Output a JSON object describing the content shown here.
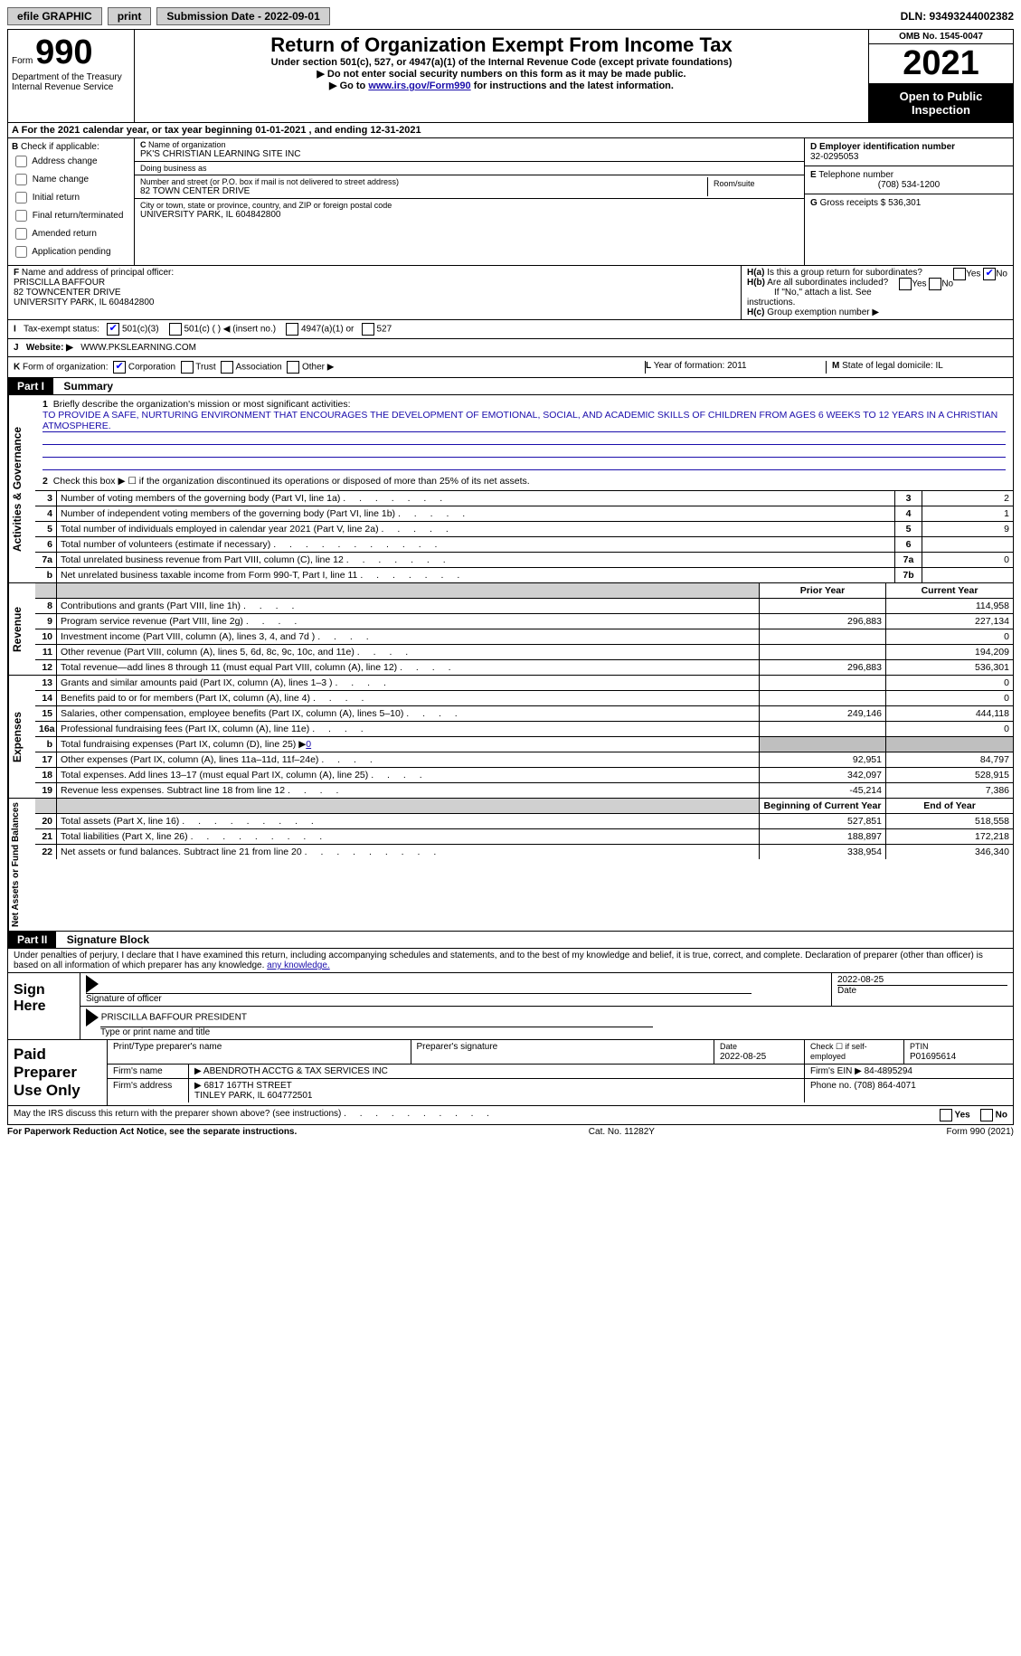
{
  "top": {
    "efile": "efile GRAPHIC",
    "print": "print",
    "sub_label": "Submission Date - 2022-09-01",
    "dln": "DLN: 93493244002382"
  },
  "header": {
    "form": "Form",
    "num": "990",
    "dept": "Department of the Treasury",
    "irs": "Internal Revenue Service",
    "title": "Return of Organization Exempt From Income Tax",
    "sub": "Under section 501(c), 527, or 4947(a)(1) of the Internal Revenue Code (except private foundations)",
    "pub": "▶ Do not enter social security numbers on this form as it may be made public.",
    "go": "▶ Go to ",
    "go_link": "www.irs.gov/Form990",
    "go2": " for instructions and the latest information.",
    "omb": "OMB No. 1545-0047",
    "year": "2021",
    "open": "Open to Public Inspection"
  },
  "A": {
    "text": "For the 2021 calendar year, or tax year beginning 01-01-2021     , and ending 12-31-2021"
  },
  "B": {
    "title": "Check if applicable:",
    "opts": [
      "Address change",
      "Name change",
      "Initial return",
      "Final return/terminated",
      "Amended return",
      "Application pending"
    ]
  },
  "C": {
    "name_lbl": "Name of organization",
    "name": "PK'S CHRISTIAN LEARNING SITE INC",
    "dba_lbl": "Doing business as",
    "dba": "",
    "addr_lbl": "Number and street (or P.O. box if mail is not delivered to street address)",
    "addr": "82 TOWN CENTER DRIVE",
    "room_lbl": "Room/suite",
    "city_lbl": "City or town, state or province, country, and ZIP or foreign postal code",
    "city": "UNIVERSITY PARK, IL  604842800"
  },
  "D": {
    "lbl": "Employer identification number",
    "val": "32-0295053"
  },
  "E": {
    "lbl": "Telephone number",
    "val": "(708) 534-1200"
  },
  "G": {
    "lbl": "Gross receipts $",
    "val": "536,301"
  },
  "F": {
    "lbl": "Name and address of principal officer:",
    "name": "PRISCILLA BAFFOUR",
    "addr1": "82 TOWNCENTER DRIVE",
    "addr2": "UNIVERSITY PARK, IL  604842800"
  },
  "H": {
    "a": "Is this a group return for subordinates?",
    "b": "Are all subordinates included?",
    "b2": "If \"No,\" attach a list. See instructions.",
    "c": "Group exemption number ▶"
  },
  "I": {
    "lbl": "Tax-exempt status:",
    "opts": [
      "501(c)(3)",
      "501(c) (  ) ◀ (insert no.)",
      "4947(a)(1) or",
      "527"
    ]
  },
  "J": {
    "lbl": "Website: ▶",
    "val": "WWW.PKSLEARNING.COM"
  },
  "K": {
    "lbl": "Form of organization:",
    "opts": [
      "Corporation",
      "Trust",
      "Association",
      "Other ▶"
    ]
  },
  "L": {
    "lbl": "Year of formation:",
    "val": "2011"
  },
  "M": {
    "lbl": "State of legal domicile:",
    "val": "IL"
  },
  "part1": {
    "tag": "Part I",
    "title": "Summary"
  },
  "p1": {
    "side1": "Activities & Governance",
    "l1": "Briefly describe the organization's mission or most significant activities:",
    "mission": "TO PROVIDE A SAFE, NURTURING ENVIRONMENT THAT ENCOURAGES THE DEVELOPMENT OF EMOTIONAL, SOCIAL, AND ACADEMIC SKILLS OF CHILDREN FROM AGES 6 WEEKS TO 12 YEARS IN A CHRISTIAN ATMOSPHERE.",
    "l2": "Check this box ▶ ☐ if the organization discontinued its operations or disposed of more than 25% of its net assets.",
    "l3": "Number of voting members of the governing body (Part VI, line 1a)",
    "v3": "2",
    "l4": "Number of independent voting members of the governing body (Part VI, line 1b)",
    "v4": "1",
    "l5": "Total number of individuals employed in calendar year 2021 (Part V, line 2a)",
    "v5": "9",
    "l6": "Total number of volunteers (estimate if necessary)",
    "v6": "",
    "l7a": "Total unrelated business revenue from Part VIII, column (C), line 12",
    "v7a": "0",
    "l7b": "Net unrelated business taxable income from Form 990-T, Part I, line 11",
    "v7b": ""
  },
  "rev": {
    "side": "Revenue",
    "py_lbl": "Prior Year",
    "cy_lbl": "Current Year",
    "rows": [
      {
        "n": "8",
        "d": "Contributions and grants (Part VIII, line 1h)",
        "py": "",
        "cy": "114,958"
      },
      {
        "n": "9",
        "d": "Program service revenue (Part VIII, line 2g)",
        "py": "296,883",
        "cy": "227,134"
      },
      {
        "n": "10",
        "d": "Investment income (Part VIII, column (A), lines 3, 4, and 7d )",
        "py": "",
        "cy": "0"
      },
      {
        "n": "11",
        "d": "Other revenue (Part VIII, column (A), lines 5, 6d, 8c, 9c, 10c, and 11e)",
        "py": "",
        "cy": "194,209"
      },
      {
        "n": "12",
        "d": "Total revenue—add lines 8 through 11 (must equal Part VIII, column (A), line 12)",
        "py": "296,883",
        "cy": "536,301"
      }
    ]
  },
  "exp": {
    "side": "Expenses",
    "rows": [
      {
        "n": "13",
        "d": "Grants and similar amounts paid (Part IX, column (A), lines 1–3 )",
        "py": "",
        "cy": "0"
      },
      {
        "n": "14",
        "d": "Benefits paid to or for members (Part IX, column (A), line 4)",
        "py": "",
        "cy": "0"
      },
      {
        "n": "15",
        "d": "Salaries, other compensation, employee benefits (Part IX, column (A), lines 5–10)",
        "py": "249,146",
        "cy": "444,118"
      },
      {
        "n": "16a",
        "d": "Professional fundraising fees (Part IX, column (A), line 11e)",
        "py": "",
        "cy": "0"
      },
      {
        "n": "b",
        "d": "Total fundraising expenses (Part IX, column (D), line 25) ▶",
        "val": "0",
        "grey": true
      },
      {
        "n": "17",
        "d": "Other expenses (Part IX, column (A), lines 11a–11d, 11f–24e)",
        "py": "92,951",
        "cy": "84,797"
      },
      {
        "n": "18",
        "d": "Total expenses. Add lines 13–17 (must equal Part IX, column (A), line 25)",
        "py": "342,097",
        "cy": "528,915"
      },
      {
        "n": "19",
        "d": "Revenue less expenses. Subtract line 18 from line 12",
        "py": "-45,214",
        "cy": "7,386"
      }
    ]
  },
  "net": {
    "side": "Net Assets or Fund Balances",
    "by_lbl": "Beginning of Current Year",
    "ey_lbl": "End of Year",
    "rows": [
      {
        "n": "20",
        "d": "Total assets (Part X, line 16)",
        "py": "527,851",
        "cy": "518,558"
      },
      {
        "n": "21",
        "d": "Total liabilities (Part X, line 26)",
        "py": "188,897",
        "cy": "172,218"
      },
      {
        "n": "22",
        "d": "Net assets or fund balances. Subtract line 21 from line 20",
        "py": "338,954",
        "cy": "346,340"
      }
    ]
  },
  "part2": {
    "tag": "Part II",
    "title": "Signature Block"
  },
  "sig": {
    "perjury": "Under penalties of perjury, I declare that I have examined this return, including accompanying schedules and statements, and to the best of my knowledge and belief, it is true, correct, and complete. Declaration of preparer (other than officer) is based on all information of which preparer has any knowledge.",
    "sign_here": "Sign Here",
    "sig_officer": "Signature of officer",
    "date_val": "2022-08-25",
    "date_lbl": "Date",
    "officer": "PRISCILLA BAFFOUR  PRESIDENT",
    "type_lbl": "Type or print name and title"
  },
  "paid": {
    "lbl": "Paid Preparer Use Only",
    "r1": {
      "c1": "Print/Type preparer's name",
      "c2": "Preparer's signature",
      "c3_lbl": "Date",
      "c3": "2022-08-25",
      "c4": "Check ☐ if self-employed",
      "c5_lbl": "PTIN",
      "c5": "P01695614"
    },
    "r2": {
      "c1": "Firm's name",
      "c2": "▶ ABENDROTH ACCTG & TAX SERVICES INC",
      "c3": "Firm's EIN ▶ 84-4895294"
    },
    "r3": {
      "c1": "Firm's address",
      "c2": "▶ 6817 167TH STREET",
      "c2b": "TINLEY PARK, IL  604772501",
      "c3": "Phone no. (708) 864-4071"
    }
  },
  "discuss": {
    "q": "May the IRS discuss this return with the preparer shown above? (see instructions)",
    "yes": "Yes",
    "no": "No"
  },
  "footer": {
    "left": "For Paperwork Reduction Act Notice, see the separate instructions.",
    "mid": "Cat. No. 11282Y",
    "right": "Form 990 (2021)"
  }
}
